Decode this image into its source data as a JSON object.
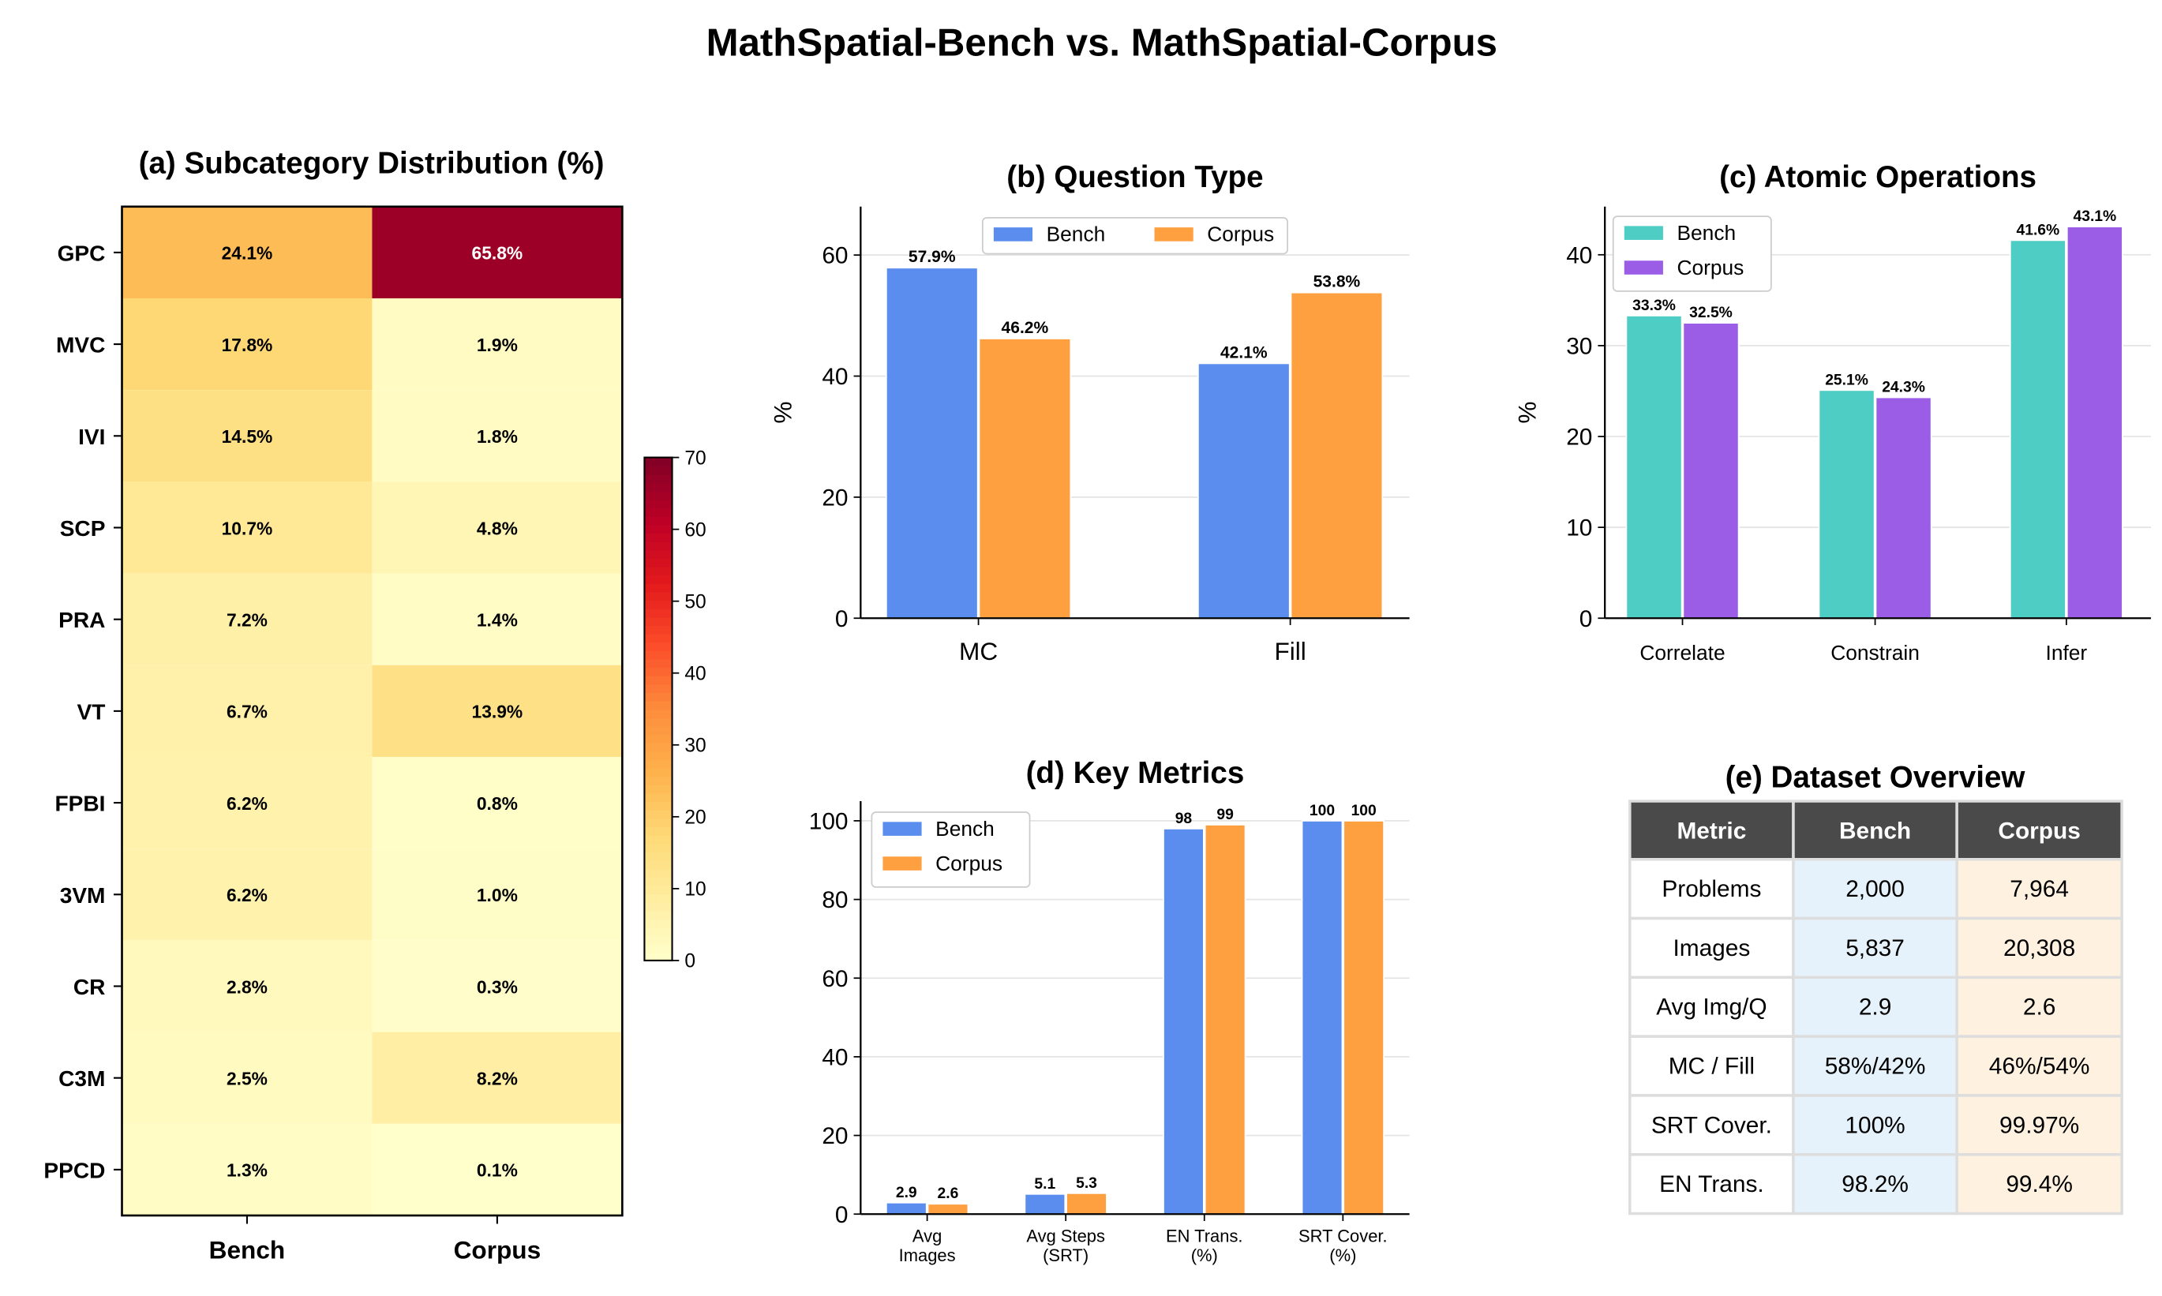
{
  "title": "MathSpatial-Bench vs. MathSpatial-Corpus",
  "colors": {
    "bench": "#5B8DEF",
    "corpus": "#FFA040",
    "bench_ops": "#4ECDC4",
    "corpus_ops": "#9B5DE5",
    "table_header": "#4A4A4A",
    "table_bench": "#E6F2FB",
    "table_corpus": "#FEF1E0"
  },
  "chart_data": [
    {
      "type": "heatmap",
      "title": "(a) Subcategory Distribution (%)",
      "rows": [
        "GPC",
        "MVC",
        "IVI",
        "SCP",
        "PRA",
        "VT",
        "FPBI",
        "3VM",
        "CR",
        "C3M",
        "PPCD"
      ],
      "columns": [
        "Bench",
        "Corpus"
      ],
      "values": [
        [
          24.1,
          65.8
        ],
        [
          17.8,
          1.9
        ],
        [
          14.5,
          1.8
        ],
        [
          10.7,
          4.8
        ],
        [
          7.2,
          1.4
        ],
        [
          6.7,
          13.9
        ],
        [
          6.2,
          0.8
        ],
        [
          6.2,
          1.0
        ],
        [
          2.8,
          0.3
        ],
        [
          2.5,
          8.2
        ],
        [
          1.3,
          0.1
        ]
      ],
      "cell_labels": [
        [
          "24.1%",
          "65.8%"
        ],
        [
          "17.8%",
          "1.9%"
        ],
        [
          "14.5%",
          "1.8%"
        ],
        [
          "10.7%",
          "4.8%"
        ],
        [
          "7.2%",
          "1.4%"
        ],
        [
          "6.7%",
          "13.9%"
        ],
        [
          "6.2%",
          "0.8%"
        ],
        [
          "6.2%",
          "1.0%"
        ],
        [
          "2.8%",
          "0.3%"
        ],
        [
          "2.5%",
          "8.2%"
        ],
        [
          "1.3%",
          "0.1%"
        ]
      ],
      "colormap": "YlOrRd",
      "colorbar": {
        "range": [
          0,
          70
        ],
        "ticks": [
          "0",
          "10",
          "20",
          "30",
          "40",
          "50",
          "60",
          "70"
        ]
      }
    },
    {
      "type": "bar",
      "title": "(b) Question Type",
      "categories": [
        "MC",
        "Fill"
      ],
      "series": [
        {
          "name": "Bench",
          "values": [
            57.9,
            42.1
          ],
          "labels": [
            "57.9%",
            "42.1%"
          ]
        },
        {
          "name": "Corpus",
          "values": [
            46.2,
            53.8
          ],
          "labels": [
            "46.2%",
            "53.8%"
          ]
        }
      ],
      "ylabel": "%",
      "ylim": [
        0,
        68
      ],
      "yticks": [
        "0",
        "20",
        "40",
        "60"
      ],
      "grid": true,
      "legend": "top-center"
    },
    {
      "type": "bar",
      "title": "(c) Atomic Operations",
      "categories": [
        "Correlate",
        "Constrain",
        "Infer"
      ],
      "series": [
        {
          "name": "Bench",
          "values": [
            33.3,
            25.1,
            41.6
          ],
          "labels": [
            "33.3%",
            "25.1%",
            "41.6%"
          ]
        },
        {
          "name": "Corpus",
          "values": [
            32.5,
            24.3,
            43.1
          ],
          "labels": [
            "32.5%",
            "24.3%",
            "43.1%"
          ]
        }
      ],
      "ylabel": "%",
      "ylim": [
        0,
        45.3
      ],
      "yticks": [
        "0",
        "10",
        "20",
        "30",
        "40"
      ],
      "grid": true,
      "legend": "top-left"
    },
    {
      "type": "bar",
      "title": "(d) Key Metrics",
      "categories": [
        [
          "Avg",
          "Images"
        ],
        [
          "Avg Steps",
          "(SRT)"
        ],
        [
          "EN Trans.",
          "(%)"
        ],
        [
          "SRT Cover.",
          "(%)"
        ]
      ],
      "series": [
        {
          "name": "Bench",
          "values": [
            2.9,
            5.1,
            98,
            100
          ],
          "labels": [
            "2.9",
            "5.1",
            "98",
            "100"
          ]
        },
        {
          "name": "Corpus",
          "values": [
            2.6,
            5.3,
            99,
            100
          ],
          "labels": [
            "2.6",
            "5.3",
            "99",
            "100"
          ]
        }
      ],
      "ylim": [
        0,
        105
      ],
      "yticks": [
        "0",
        "20",
        "40",
        "60",
        "80",
        "100"
      ],
      "grid": true,
      "legend": "top-left"
    },
    {
      "type": "table",
      "title": "(e) Dataset Overview",
      "headers": [
        "Metric",
        "Bench",
        "Corpus"
      ],
      "rows": [
        [
          "Problems",
          "2,000",
          "7,964"
        ],
        [
          "Images",
          "5,837",
          "20,308"
        ],
        [
          "Avg Img/Q",
          "2.9",
          "2.6"
        ],
        [
          "MC / Fill",
          "58%/42%",
          "46%/54%"
        ],
        [
          "SRT Cover.",
          "100%",
          "99.97%"
        ],
        [
          "EN Trans.",
          "98.2%",
          "99.4%"
        ]
      ]
    }
  ]
}
